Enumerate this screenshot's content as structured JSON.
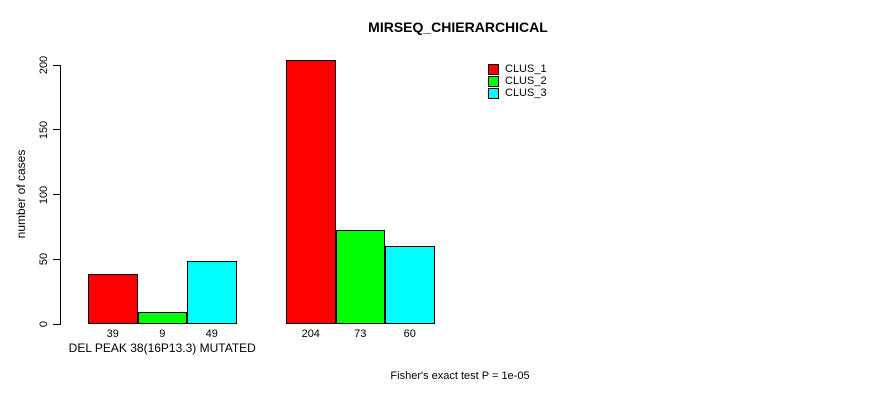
{
  "chart_data": {
    "type": "bar",
    "title": "MIRSEQ_CHIERARCHICAL",
    "ylabel": "number of cases",
    "xlabel": "",
    "yticks": [
      0,
      50,
      100,
      150,
      200
    ],
    "ylim": [
      0,
      205
    ],
    "grid": false,
    "legend_position": "top-right",
    "bar_value_labels_shown": true,
    "groups": [
      {
        "label": "DEL PEAK 38(16P13.3) MUTATED"
      },
      {
        "label": ""
      }
    ],
    "series": [
      {
        "name": "CLUS_1",
        "color": "#ff0000",
        "values": [
          39,
          204
        ]
      },
      {
        "name": "CLUS_2",
        "color": "#00ff00",
        "values": [
          9,
          73
        ]
      },
      {
        "name": "CLUS_3",
        "color": "#00ffff",
        "values": [
          49,
          60
        ]
      }
    ],
    "annotation": "Fisher's exact test P = 1e-05"
  }
}
